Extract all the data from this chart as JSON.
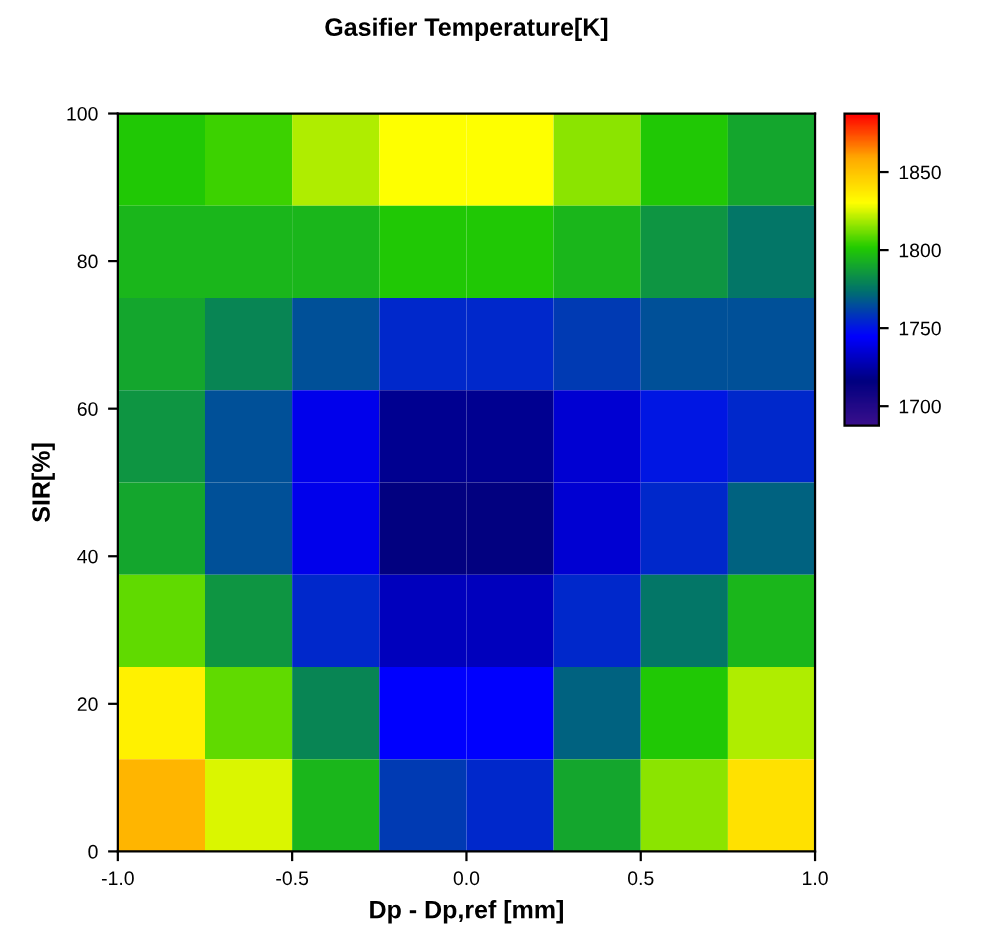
{
  "chart_data": {
    "type": "heatmap",
    "title": "Gasifier Temperature[K]",
    "xlabel": "Dp - Dp,ref [mm]",
    "ylabel": "SIR[%]",
    "x": [
      -0.875,
      -0.625,
      -0.375,
      -0.125,
      0.125,
      0.375,
      0.625,
      0.875
    ],
    "y": [
      93.75,
      81.25,
      68.75,
      56.25,
      43.75,
      31.25,
      18.75,
      6.25
    ],
    "cells": [
      [
        1800,
        1805,
        1820,
        1830,
        1830,
        1815,
        1800,
        1790
      ],
      [
        1795,
        1795,
        1795,
        1800,
        1800,
        1795,
        1785,
        1775
      ],
      [
        1790,
        1780,
        1765,
        1755,
        1755,
        1760,
        1765,
        1765
      ],
      [
        1785,
        1765,
        1740,
        1720,
        1720,
        1735,
        1750,
        1755
      ],
      [
        1790,
        1765,
        1740,
        1715,
        1715,
        1735,
        1755,
        1770
      ],
      [
        1810,
        1785,
        1755,
        1730,
        1730,
        1755,
        1775,
        1795
      ],
      [
        1835,
        1810,
        1780,
        1745,
        1745,
        1770,
        1800,
        1820
      ],
      [
        1855,
        1825,
        1795,
        1760,
        1755,
        1790,
        1815,
        1840
      ]
    ],
    "colors": [
      "#3a0f8c",
      "#000080",
      "#0000ff",
      "#006f6f",
      "#22cc00",
      "#ffff00",
      "#ffaa00",
      "#ff0000"
    ],
    "clim": [
      1687.5,
      1887.5
    ],
    "cticks": [
      1700,
      1750,
      1800,
      1850
    ],
    "xlim": [
      -1.0,
      1.0
    ],
    "xticks": [
      {
        "value": -1.0,
        "label": "-1.0"
      },
      {
        "value": -0.5,
        "label": "-0.5"
      },
      {
        "value": 0.0,
        "label": "0.0"
      },
      {
        "value": 0.5,
        "label": "0.5"
      },
      {
        "value": 1.0,
        "label": "1.0"
      }
    ],
    "ylim": [
      0,
      100
    ],
    "yticks": [
      0,
      20,
      40,
      60,
      80,
      100
    ]
  }
}
